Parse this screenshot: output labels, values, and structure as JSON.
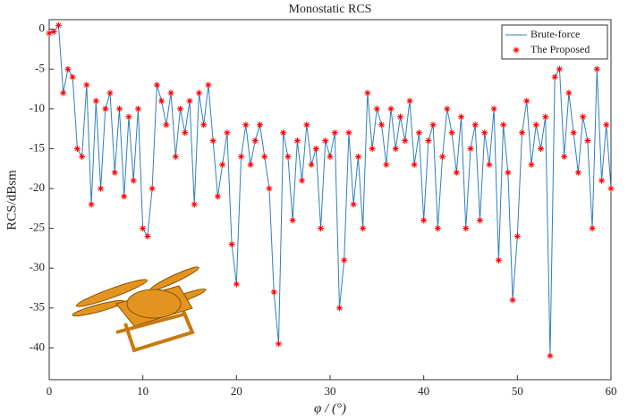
{
  "chart_data": {
    "type": "line",
    "title": "Monostatic RCS",
    "xlabel": "φ / (°)",
    "ylabel": "RCS/dBsm",
    "x": [
      0,
      0.5,
      1,
      1.5,
      2,
      2.5,
      3,
      3.5,
      4,
      4.5,
      5,
      5.5,
      6,
      6.5,
      7,
      7.5,
      8,
      8.5,
      9,
      9.5,
      10,
      10.5,
      11,
      11.5,
      12,
      12.5,
      13,
      13.5,
      14,
      14.5,
      15,
      15.5,
      16,
      16.5,
      17,
      17.5,
      18,
      18.5,
      19,
      19.5,
      20,
      20.5,
      21,
      21.5,
      22,
      22.5,
      23,
      23.5,
      24,
      24.5,
      25,
      25.5,
      26,
      26.5,
      27,
      27.5,
      28,
      28.5,
      29,
      29.5,
      30,
      30.5,
      31,
      31.5,
      32,
      32.5,
      33,
      33.5,
      34,
      34.5,
      35,
      35.5,
      36,
      36.5,
      37,
      37.5,
      38,
      38.5,
      39,
      39.5,
      40,
      40.5,
      41,
      41.5,
      42,
      42.5,
      43,
      43.5,
      44,
      44.5,
      45,
      45.5,
      46,
      46.5,
      47,
      47.5,
      48,
      48.5,
      49,
      49.5,
      50,
      50.5,
      51,
      51.5,
      52,
      52.5,
      53,
      53.5,
      54,
      54.5,
      55,
      55.5,
      56,
      56.5,
      57,
      57.5,
      58,
      58.5,
      59,
      59.5,
      60
    ],
    "series": [
      {
        "name": "Brute-force",
        "color": "#2e7fc0",
        "marker": "none",
        "values": [
          -0.5,
          -0.3,
          0.5,
          -8,
          -5,
          -6,
          -15,
          -16,
          -7,
          -22,
          -9,
          -20,
          -10,
          -8,
          -18,
          -10,
          -21,
          -11,
          -19,
          -10,
          -25,
          -26,
          -20,
          -7,
          -9,
          -12,
          -8,
          -16,
          -10,
          -13,
          -9,
          -22,
          -8,
          -12,
          -7,
          -14,
          -21,
          -17,
          -13,
          -27,
          -32,
          -16,
          -12,
          -17,
          -14,
          -12,
          -16,
          -20,
          -33,
          -39.5,
          -13,
          -16,
          -24,
          -14,
          -19,
          -12,
          -17,
          -15,
          -25,
          -14,
          -16,
          -13,
          -35,
          -29,
          -13,
          -22,
          -16,
          -25,
          -8,
          -15,
          -10,
          -12,
          -17,
          -10,
          -15,
          -11,
          -14,
          -9,
          -17,
          -13,
          -24,
          -14,
          -12,
          -25,
          -16,
          -10,
          -13,
          -18,
          -11,
          -25,
          -15,
          -12,
          -24,
          -13,
          -17,
          -10,
          -29,
          -12,
          -18,
          -34,
          -26,
          -13,
          -9,
          -17,
          -12,
          -15,
          -11,
          -41,
          -6,
          -5,
          -16,
          -8,
          -13,
          -18,
          -11,
          -14,
          -25,
          -5,
          -19,
          -12,
          -20
        ]
      },
      {
        "name": "The Proposed",
        "color": "#ff0000",
        "marker": "asterisk",
        "values": [
          -0.5,
          -0.3,
          0.5,
          -8,
          -5,
          -6,
          -15,
          -16,
          -7,
          -22,
          -9,
          -20,
          -10,
          -8,
          -18,
          -10,
          -21,
          -11,
          -19,
          -10,
          -25,
          -26,
          -20,
          -7,
          -9,
          -12,
          -8,
          -16,
          -10,
          -13,
          -9,
          -22,
          -8,
          -12,
          -7,
          -14,
          -21,
          -17,
          -13,
          -27,
          -32,
          -16,
          -12,
          -17,
          -14,
          -12,
          -16,
          -20,
          -33,
          -39.5,
          -13,
          -16,
          -24,
          -14,
          -19,
          -12,
          -17,
          -15,
          -25,
          -14,
          -16,
          -13,
          -35,
          -29,
          -13,
          -22,
          -16,
          -25,
          -8,
          -15,
          -10,
          -12,
          -17,
          -10,
          -15,
          -11,
          -14,
          -9,
          -17,
          -13,
          -24,
          -14,
          -12,
          -25,
          -16,
          -10,
          -13,
          -18,
          -11,
          -25,
          -15,
          -12,
          -24,
          -13,
          -17,
          -10,
          -29,
          -12,
          -18,
          -34,
          -26,
          -13,
          -9,
          -17,
          -12,
          -15,
          -11,
          -41,
          -6,
          -5,
          -16,
          -8,
          -13,
          -18,
          -11,
          -14,
          -25,
          -5,
          -19,
          -12,
          -20
        ]
      }
    ],
    "xlim": [
      0,
      60
    ],
    "xticks": [
      0,
      10,
      20,
      30,
      40,
      50,
      60
    ],
    "ylim": [
      -44,
      1.2
    ],
    "yticks": [
      -40,
      -35,
      -30,
      -25,
      -20,
      -15,
      -10,
      -5,
      0
    ],
    "legend": "northeast"
  }
}
